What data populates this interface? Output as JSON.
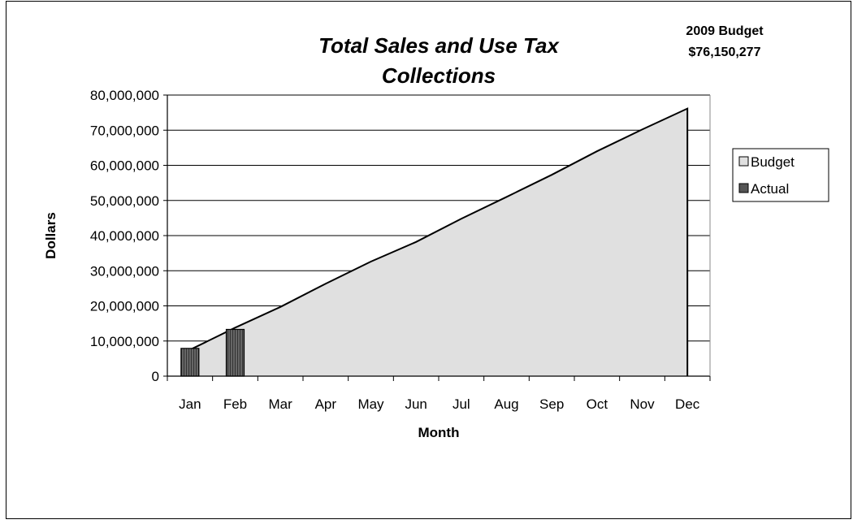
{
  "chart_data": {
    "type": "area",
    "title_lines": [
      "Total Sales and Use Tax",
      "Collections"
    ],
    "annotation_lines": [
      "2009 Budget",
      "$76,150,277"
    ],
    "xlabel": "Month",
    "ylabel": "Dollars",
    "categories": [
      "Jan",
      "Feb",
      "Mar",
      "Apr",
      "May",
      "Jun",
      "Jul",
      "Aug",
      "Sep",
      "Oct",
      "Nov",
      "Dec"
    ],
    "ylim": [
      0,
      80000000
    ],
    "y_ticks": [
      "0",
      "10,000,000",
      "20,000,000",
      "30,000,000",
      "40,000,000",
      "50,000,000",
      "60,000,000",
      "70,000,000",
      "80,000,000"
    ],
    "series": [
      {
        "name": "Budget",
        "kind": "area",
        "color": "#e0e0e0",
        "values": [
          7500000,
          13800000,
          19700000,
          26300000,
          32600000,
          38200000,
          44800000,
          51000000,
          57300000,
          64000000,
          70200000,
          76150277
        ]
      },
      {
        "name": "Actual",
        "kind": "bar",
        "color": "#555555",
        "values": [
          7900000,
          13300000,
          null,
          null,
          null,
          null,
          null,
          null,
          null,
          null,
          null,
          null
        ]
      }
    ],
    "grid": "horizontal",
    "legend_position": "right"
  }
}
